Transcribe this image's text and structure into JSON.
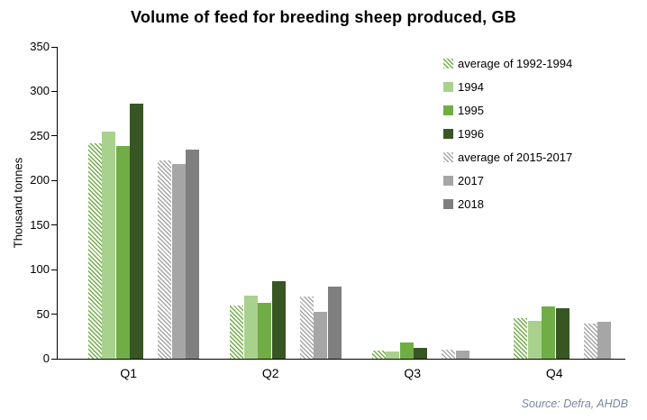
{
  "chart_data": {
    "type": "bar",
    "title": "Volume of feed for breeding sheep produced, GB",
    "xlabel": "",
    "ylabel": "Thousand tonnes",
    "ylim": [
      0,
      350
    ],
    "ytick_step": 50,
    "grid": false,
    "legend_position": "top-right",
    "categories": [
      "Q1",
      "Q2",
      "Q3",
      "Q4"
    ],
    "series": [
      {
        "name": "average of 1992-1994",
        "style": "hatch-green",
        "color": "",
        "values": [
          242,
          60,
          9,
          46
        ]
      },
      {
        "name": "1994",
        "style": "solid",
        "color": "#a9d18e",
        "values": [
          255,
          71,
          8,
          43
        ]
      },
      {
        "name": "1995",
        "style": "solid",
        "color": "#70ad47",
        "values": [
          239,
          63,
          18,
          59
        ]
      },
      {
        "name": "1996",
        "style": "solid",
        "color": "#375623",
        "values": [
          286,
          87,
          12,
          57
        ]
      },
      {
        "name": "average of 2015-2017",
        "style": "hatch-gray",
        "color": "",
        "values": [
          223,
          70,
          10,
          39
        ]
      },
      {
        "name": "2017",
        "style": "solid",
        "color": "#a6a6a6",
        "values": [
          219,
          53,
          9,
          41
        ]
      },
      {
        "name": "2018",
        "style": "solid",
        "color": "#7f7f7f",
        "values": [
          235,
          81,
          null,
          null
        ]
      }
    ],
    "source": "Source: Defra, AHDB",
    "colors": {
      "axis": "#000000",
      "hatch_green_stripe": "#70ad47",
      "hatch_gray_stripe": "#a6a6a6",
      "source_text": "#7a86a0"
    }
  }
}
